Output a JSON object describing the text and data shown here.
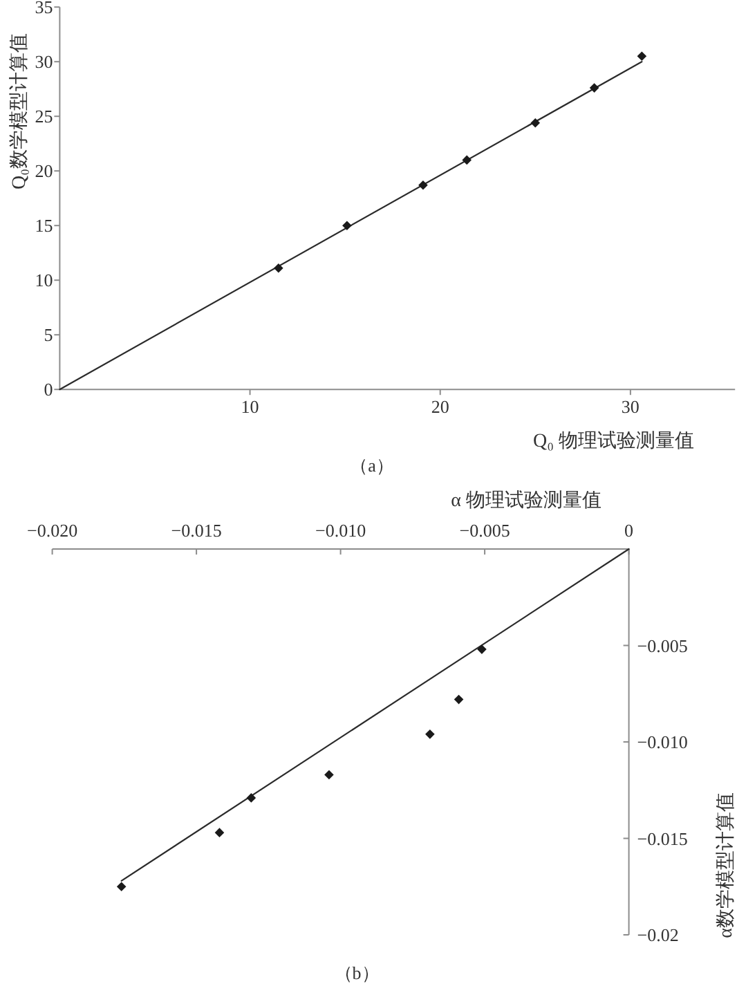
{
  "chart_data": [
    {
      "type": "scatter",
      "xlabel": "Q₀ 物理试验测量值",
      "ylabel": "Q₀数学模型计算值",
      "xlim": [
        0,
        35.5
      ],
      "ylim": [
        0,
        35
      ],
      "xticks": [
        10,
        20,
        30
      ],
      "yticks": [
        0,
        5,
        10,
        15,
        20,
        25,
        30,
        35
      ],
      "marker": "diamond",
      "series": [
        {
          "type": "scatter",
          "color": "#1a1a1a",
          "x": [
            11.5,
            15.1,
            19.1,
            21.4,
            25.0,
            28.1,
            30.6
          ],
          "values": [
            11.1,
            15.0,
            18.7,
            21.0,
            24.4,
            27.6,
            30.5
          ]
        },
        {
          "type": "line",
          "color": "#2b2b2b",
          "marker": "none",
          "line_style": "solid",
          "x": [
            0,
            30.6
          ],
          "values": [
            0,
            30.0
          ]
        }
      ],
      "annotations": [
        "（a）"
      ]
    },
    {
      "type": "scatter",
      "xlabel": "α 物理试验测量值",
      "ylabel": "α数学模型计算值",
      "xlim": [
        -0.02,
        0
      ],
      "ylim": [
        -0.02,
        0
      ],
      "xticks": [
        {
          "value": -0.02,
          "label": "−0.020"
        },
        {
          "value": -0.015,
          "label": "−0.015"
        },
        {
          "value": -0.01,
          "label": "−0.010"
        },
        {
          "value": -0.005,
          "label": "−0.005"
        },
        0
      ],
      "yticks": [
        {
          "value": -0.005,
          "label": "−0.005"
        },
        {
          "value": -0.01,
          "label": "−0.010"
        },
        {
          "value": -0.015,
          "label": "−0.015"
        },
        {
          "value": -0.02,
          "label": "−0.02"
        }
      ],
      "marker": "diamond",
      "series": [
        {
          "type": "scatter",
          "color": "#1a1a1a",
          "x": [
            -0.0176,
            -0.0142,
            -0.0131,
            -0.0104,
            -0.0069,
            -0.0059,
            -0.0051
          ],
          "values": [
            -0.0175,
            -0.0147,
            -0.0129,
            -0.0117,
            -0.0096,
            -0.0078,
            -0.0052
          ]
        },
        {
          "type": "line",
          "color": "#2b2b2b",
          "marker": "none",
          "line_style": "solid",
          "x": [
            -0.0176,
            0
          ],
          "values": [
            -0.0172,
            0
          ]
        }
      ],
      "annotations": [
        "（b）"
      ]
    }
  ]
}
